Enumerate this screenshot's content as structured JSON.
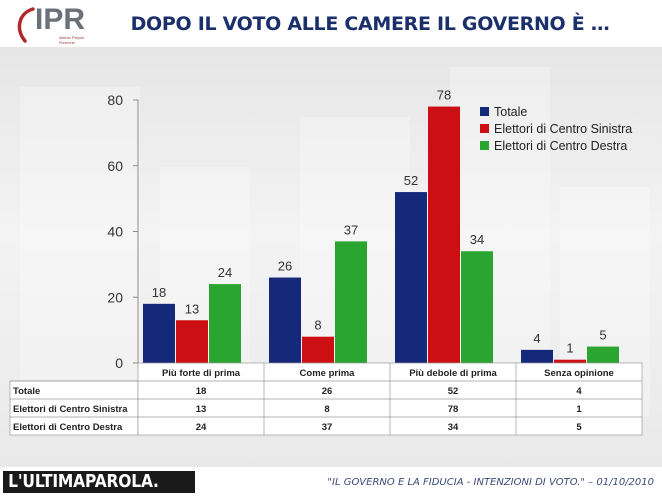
{
  "header": {
    "logo_text": "IPR",
    "logo_subtext": "Istituto Piepoli Ricerche",
    "title": "DOPO IL VOTO ALLE CAMERE IL GOVERNO È …"
  },
  "chart_data": {
    "type": "bar",
    "title": "",
    "xlabel": "",
    "ylabel": "",
    "ylim": [
      0,
      80
    ],
    "yticks": [
      0,
      20,
      40,
      60,
      80
    ],
    "legend_position": "top-right",
    "categories": [
      "Più forte di prima",
      "Come prima",
      "Più debole di prima",
      "Senza opinione"
    ],
    "series": [
      {
        "name": "Totale",
        "color": "#15297a",
        "values": [
          18,
          26,
          52,
          4
        ]
      },
      {
        "name": "Elettori di Centro Sinistra",
        "color": "#cc0f12",
        "values": [
          13,
          8,
          78,
          1
        ]
      },
      {
        "name": "Elettori di Centro Destra",
        "color": "#2aa630",
        "values": [
          24,
          37,
          34,
          5
        ]
      }
    ],
    "data_table": true
  },
  "footer": {
    "logo_text": "L'ULTIMAPAROLA.",
    "caption": "\"IL GOVERNO E LA FIDUCIA - INTENZIONI DI VOTO.\" – 01/10/2010"
  }
}
